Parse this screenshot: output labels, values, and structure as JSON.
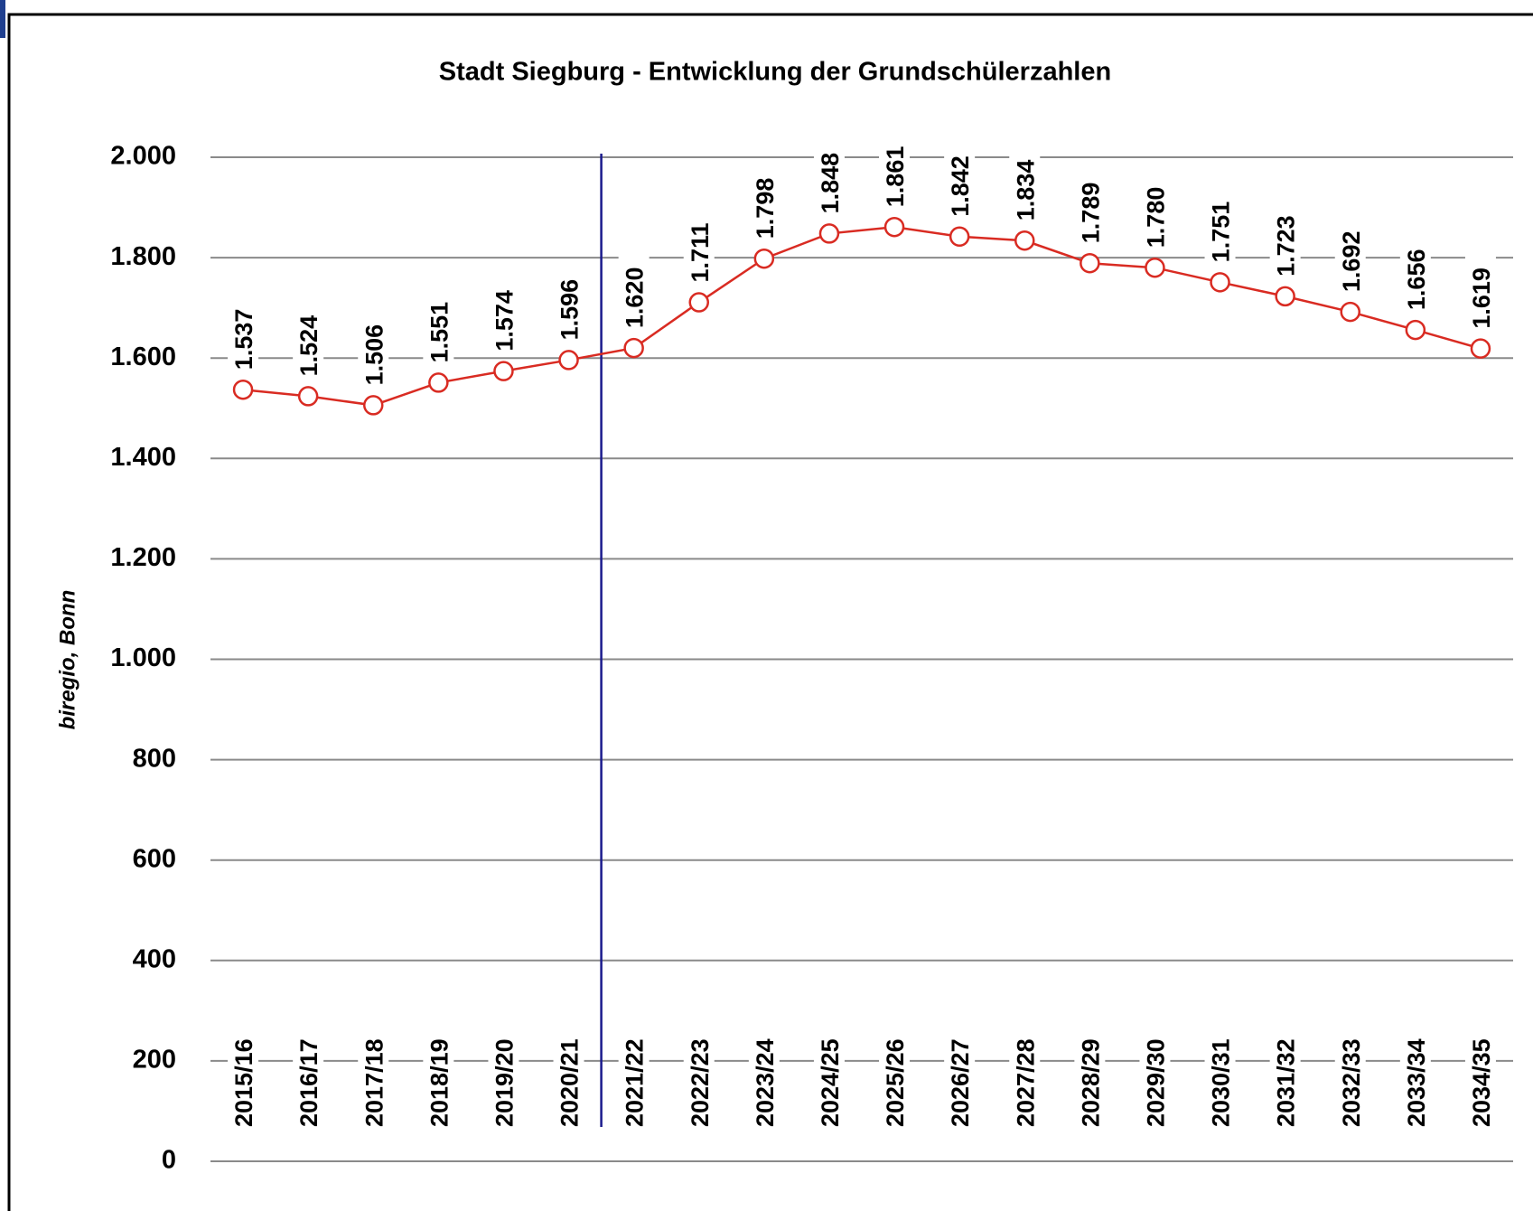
{
  "chart_data": {
    "type": "line",
    "title": "Stadt Siegburg - Entwicklung der Grundschülerzahlen",
    "ylabel": "biregio, Bonn",
    "categories": [
      "2015/16",
      "2016/17",
      "2017/18",
      "2018/19",
      "2019/20",
      "2020/21",
      "2021/22",
      "2022/23",
      "2023/24",
      "2024/25",
      "2025/26",
      "2026/27",
      "2027/28",
      "2028/29",
      "2029/30",
      "2030/31",
      "2031/32",
      "2032/33",
      "2033/34",
      "2034/35"
    ],
    "series": [
      {
        "color": "#d92b22",
        "values": [
          1537,
          1524,
          1506,
          1551,
          1574,
          1596,
          1620,
          1711,
          1798,
          1848,
          1861,
          1842,
          1834,
          1789,
          1780,
          1751,
          1723,
          1692,
          1656,
          1619
        ],
        "value_labels": [
          "1.537",
          "1.524",
          "1.506",
          "1.551",
          "1.574",
          "1.596",
          "1.620",
          "1.711",
          "1.798",
          "1.848",
          "1.861",
          "1.842",
          "1.834",
          "1.789",
          "1.780",
          "1.751",
          "1.723",
          "1.692",
          "1.656",
          "1.619"
        ]
      }
    ],
    "ylim": [
      0,
      2000
    ],
    "yticks": [
      {
        "value": 0,
        "label": "0"
      },
      {
        "value": 200,
        "label": "200"
      },
      {
        "value": 400,
        "label": "400"
      },
      {
        "value": 600,
        "label": "600"
      },
      {
        "value": 800,
        "label": "800"
      },
      {
        "value": 1000,
        "label": "1.000"
      },
      {
        "value": 1200,
        "label": "1.200"
      },
      {
        "value": 1400,
        "label": "1.400"
      },
      {
        "value": 1600,
        "label": "1.600"
      },
      {
        "value": 1800,
        "label": "1.800"
      },
      {
        "value": 2000,
        "label": "2.000"
      }
    ],
    "grid": true
  }
}
